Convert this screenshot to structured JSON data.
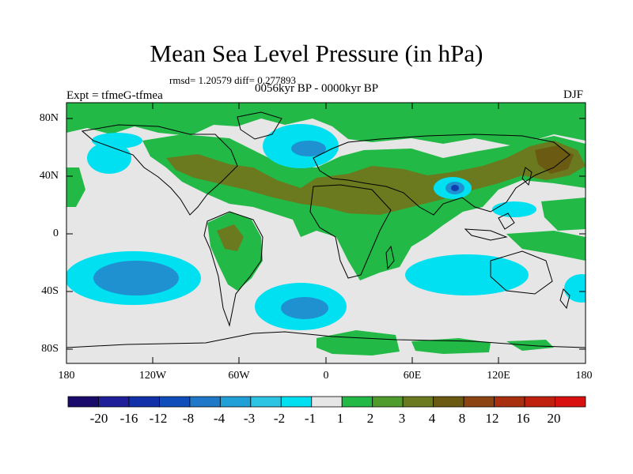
{
  "title": "Mean Sea Level Pressure (in hPa)",
  "stats_text": "rmsd= 1.20579 diff= 0.277893",
  "experiment": "Expt = tfmeG-tfmea",
  "period": "0056kyr BP - 0000kyr BP",
  "season": "DJF",
  "axes": {
    "lat_labels": [
      "80N",
      "40N",
      "0",
      "40S",
      "80S"
    ],
    "lon_labels": [
      "180",
      "120W",
      "60W",
      "0",
      "60E",
      "120E",
      "180"
    ]
  },
  "colorbar": {
    "labels": [
      "-20",
      "-16",
      "-12",
      "-8",
      "-4",
      "-3",
      "-2",
      "-1",
      "1",
      "2",
      "3",
      "4",
      "8",
      "12",
      "16",
      "20"
    ],
    "colors": [
      "#1a0a6b",
      "#1f1f99",
      "#1230a8",
      "#0f4dba",
      "#1f78c8",
      "#21a0d8",
      "#2cc4e2",
      "#00e0f0",
      "#e6e6e6",
      "#22b946",
      "#4f9c2c",
      "#6b7a1e",
      "#6a5a12",
      "#8c4413",
      "#a8300e",
      "#c0200e",
      "#d81010"
    ]
  },
  "colors": {
    "neutral": "#e6e6e6",
    "positive_light": "#22b946",
    "positive_mid": "#4f9c2c",
    "positive_strong": "#6b6a1e",
    "negative_light": "#00e0f0",
    "negative_mid": "#1f90d0",
    "negative_strong": "#1040b0"
  }
}
